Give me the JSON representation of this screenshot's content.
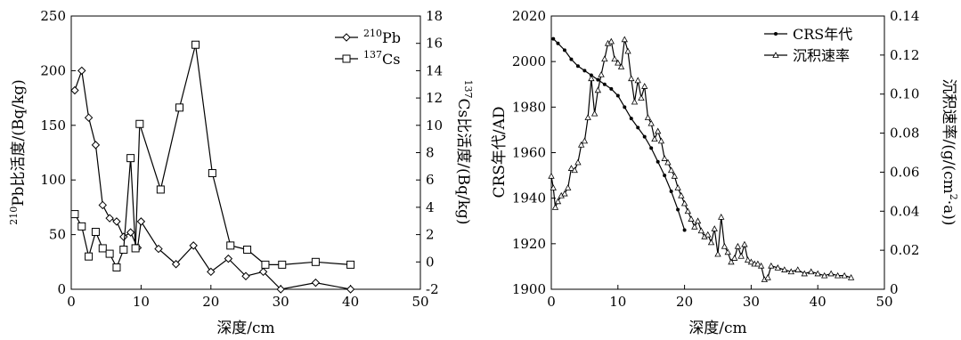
{
  "chart_data": [
    {
      "type": "line",
      "xlabel": "深度/cm",
      "ylabel_left": {
        "prefix": "",
        "sup": "210",
        "main": "Pb比活度/(Bq/kg)"
      },
      "ylabel_right": {
        "sup": "137",
        "main": "Cs比活度/(Bq/kg)"
      },
      "xlim": [
        0,
        50
      ],
      "ylim_left": [
        0,
        250
      ],
      "ylim_right": [
        -2,
        18
      ],
      "xticks": [
        0,
        10,
        20,
        30,
        40,
        50
      ],
      "yticks_left": [
        0,
        50,
        100,
        150,
        200,
        250
      ],
      "yticks_right": [
        -2,
        0,
        2,
        4,
        6,
        8,
        10,
        12,
        14,
        16,
        18
      ],
      "legend_position": "top-right",
      "series": [
        {
          "name": "Pb",
          "legend_sup": "210",
          "legend_main": "Pb",
          "axis": "left",
          "marker": "diamond",
          "x": [
            0.5,
            1.5,
            2.5,
            3.5,
            4.5,
            5.5,
            6.5,
            7.5,
            8.5,
            9.5,
            10.0,
            12.5,
            15.0,
            17.5,
            20.0,
            22.5,
            25.0,
            27.5,
            30.0,
            35.0,
            40.0
          ],
          "y": [
            182,
            200,
            157,
            132,
            77,
            65,
            62,
            48,
            52,
            38,
            62,
            37,
            23,
            40,
            16,
            28,
            12,
            16,
            0,
            6,
            0
          ]
        },
        {
          "name": "Cs",
          "legend_sup": "137",
          "legend_main": "Cs",
          "axis": "right",
          "marker": "square",
          "x": [
            0.5,
            1.5,
            2.5,
            3.5,
            4.5,
            5.5,
            6.5,
            7.5,
            8.5,
            9.2,
            9.8,
            12.8,
            15.5,
            17.8,
            20.2,
            22.8,
            25.2,
            27.8,
            30.2,
            35.0,
            40.0
          ],
          "y": [
            3.5,
            2.6,
            0.4,
            2.2,
            1.0,
            0.6,
            -0.4,
            0.9,
            7.6,
            1.0,
            10.1,
            5.3,
            11.3,
            15.9,
            6.5,
            1.2,
            0.9,
            -0.2,
            -0.2,
            0.0,
            -0.2
          ]
        }
      ]
    },
    {
      "type": "line",
      "xlabel": "深度/cm",
      "ylabel_left": {
        "main": "CRS年代/AD"
      },
      "ylabel_right": {
        "main": "沉积速率/(g/(cm",
        "sup": "2",
        "tail": "·a))"
      },
      "xlim": [
        0,
        50
      ],
      "ylim_left": [
        1900,
        2020
      ],
      "ylim_right": [
        0,
        0.14
      ],
      "xticks": [
        0,
        10,
        20,
        30,
        40,
        50
      ],
      "yticks_left": [
        1900,
        1920,
        1940,
        1960,
        1980,
        2000,
        2020
      ],
      "yticks_right": [
        "0",
        "0.02",
        "0.04",
        "0.06",
        "0.08",
        "0.10",
        "0.12",
        "0.14"
      ],
      "legend_position": "top-right",
      "series": [
        {
          "name": "CRS年代",
          "axis": "left",
          "marker": "dot",
          "x": [
            0.3,
            1.0,
            2.0,
            3.0,
            4.0,
            5.0,
            6.0,
            7.0,
            8.0,
            9.0,
            10.0,
            11.0,
            12.0,
            13.0,
            14.0,
            15.0,
            16.0,
            17.0,
            18.0,
            19.0,
            20.0
          ],
          "y": [
            2010,
            2008,
            2005,
            2001,
            1998,
            1996,
            1994,
            1992,
            1990,
            1988,
            1985,
            1980,
            1975,
            1971,
            1967,
            1962,
            1956,
            1950,
            1943,
            1935,
            1926
          ]
        },
        {
          "name": "沉积速率",
          "axis": "right",
          "marker": "triangle",
          "x": [
            0.0,
            0.3,
            0.6,
            1.0,
            1.5,
            2.0,
            2.5,
            3.0,
            3.5,
            4.0,
            4.5,
            5.0,
            5.5,
            6.0,
            6.5,
            7.0,
            7.5,
            8.0,
            8.5,
            9.0,
            9.5,
            10.0,
            10.5,
            11.0,
            11.5,
            12.0,
            12.5,
            13.0,
            13.5,
            14.0,
            14.5,
            15.0,
            15.5,
            16.0,
            16.5,
            17.0,
            17.5,
            18.0,
            18.5,
            19.0,
            19.5,
            20.0,
            20.5,
            21.0,
            21.5,
            22.0,
            22.5,
            23.0,
            23.5,
            24.0,
            24.5,
            25.0,
            25.5,
            26.0,
            26.5,
            27.0,
            27.5,
            28.0,
            28.5,
            29.0,
            29.5,
            30.0,
            30.5,
            31.0,
            31.5,
            32.0,
            32.5,
            33.0,
            34.0,
            35.0,
            36.0,
            37.0,
            38.0,
            39.0,
            40.0,
            41.0,
            42.0,
            43.0,
            44.0,
            45.0
          ],
          "y": [
            0.058,
            0.052,
            0.042,
            0.045,
            0.048,
            0.049,
            0.052,
            0.062,
            0.061,
            0.065,
            0.074,
            0.076,
            0.088,
            0.108,
            0.09,
            0.102,
            0.11,
            0.118,
            0.126,
            0.127,
            0.118,
            0.116,
            0.114,
            0.128,
            0.122,
            0.108,
            0.096,
            0.107,
            0.098,
            0.104,
            0.088,
            0.085,
            0.077,
            0.081,
            0.076,
            0.067,
            0.065,
            0.061,
            0.058,
            0.052,
            0.048,
            0.044,
            0.04,
            0.036,
            0.032,
            0.035,
            0.03,
            0.027,
            0.028,
            0.024,
            0.031,
            0.018,
            0.037,
            0.022,
            0.019,
            0.014,
            0.016,
            0.022,
            0.017,
            0.023,
            0.015,
            0.014,
            0.013,
            0.013,
            0.012,
            0.005,
            0.006,
            0.012,
            0.011,
            0.01,
            0.009,
            0.01,
            0.008,
            0.009,
            0.008,
            0.007,
            0.008,
            0.007,
            0.007,
            0.006
          ]
        }
      ]
    }
  ]
}
